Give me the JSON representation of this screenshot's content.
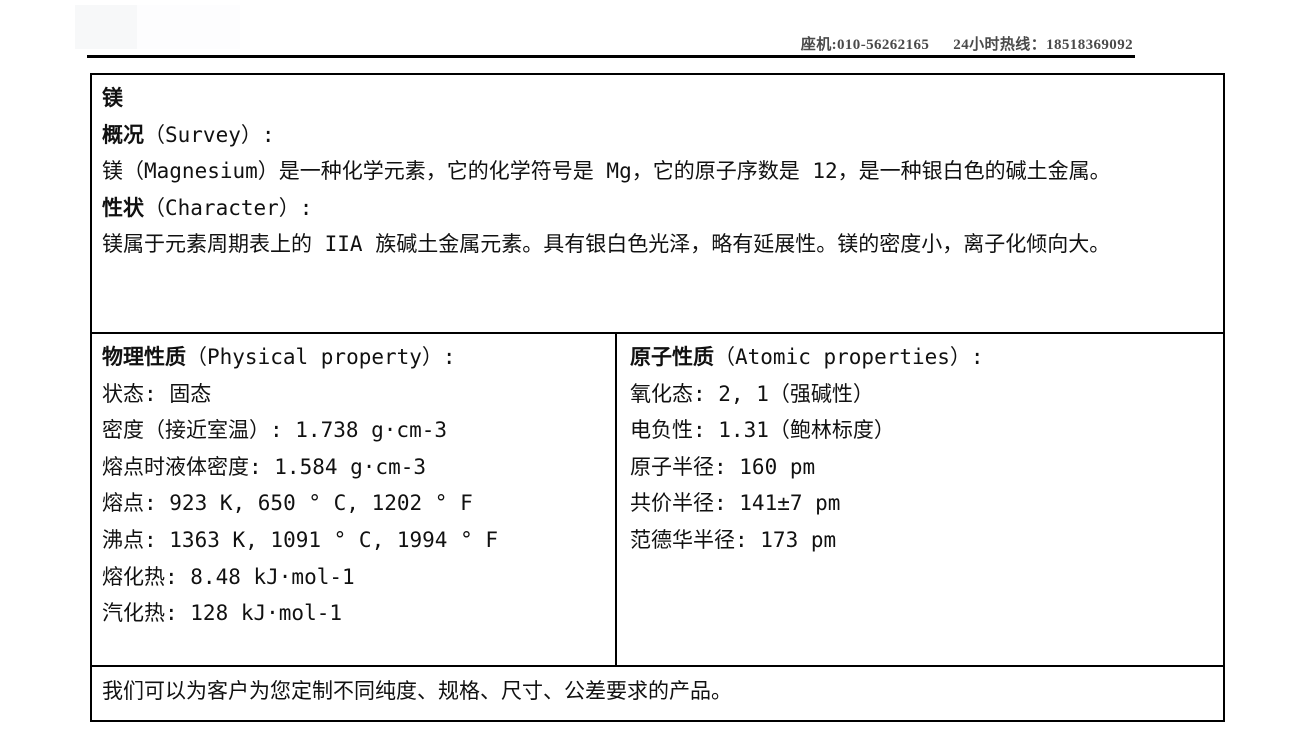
{
  "header": {
    "landline": "座机:010-56262165",
    "hotline": "24小时热线：18518369092"
  },
  "product": {
    "title": "镁",
    "survey": {
      "heading_zh": "概况",
      "heading_suffix": "（Survey）:",
      "body": "镁（Magnesium）是一种化学元素，它的化学符号是 Mg，它的原子序数是 12，是一种银白色的碱土金属。"
    },
    "character": {
      "heading_zh": "性状",
      "heading_suffix": "（Character）:",
      "body": "镁属于元素周期表上的 IIA 族碱土金属元素。具有银白色光泽，略有延展性。镁的密度小，离子化倾向大。"
    }
  },
  "physical": {
    "heading_zh": "物理性质",
    "heading_suffix": "（Physical property）:",
    "rows": [
      "状态: 固态",
      "密度（接近室温）: 1.738 g·cm-3",
      "熔点时液体密度: 1.584 g·cm-3",
      "熔点: 923 K, 650 ° C, 1202 ° F",
      "沸点: 1363 K, 1091 ° C, 1994 ° F",
      "熔化热: 8.48 kJ·mol-1",
      "汽化热: 128 kJ·mol-1"
    ]
  },
  "atomic": {
    "heading_zh": "原子性质",
    "heading_suffix": "（Atomic properties）:",
    "rows": [
      "氧化态: 2, 1（强碱性）",
      "电负性: 1.31（鲍林标度）",
      "原子半径: 160 pm",
      "共价半径: 141±7 pm",
      "范德华半径: 173 pm"
    ]
  },
  "footer_note": "我们可以为客户为您定制不同纯度、规格、尺寸、公差要求的产品。",
  "colors": {
    "border": "#000000",
    "header_text": "#4a4a4a",
    "body_text": "#111111",
    "background": "#ffffff"
  }
}
